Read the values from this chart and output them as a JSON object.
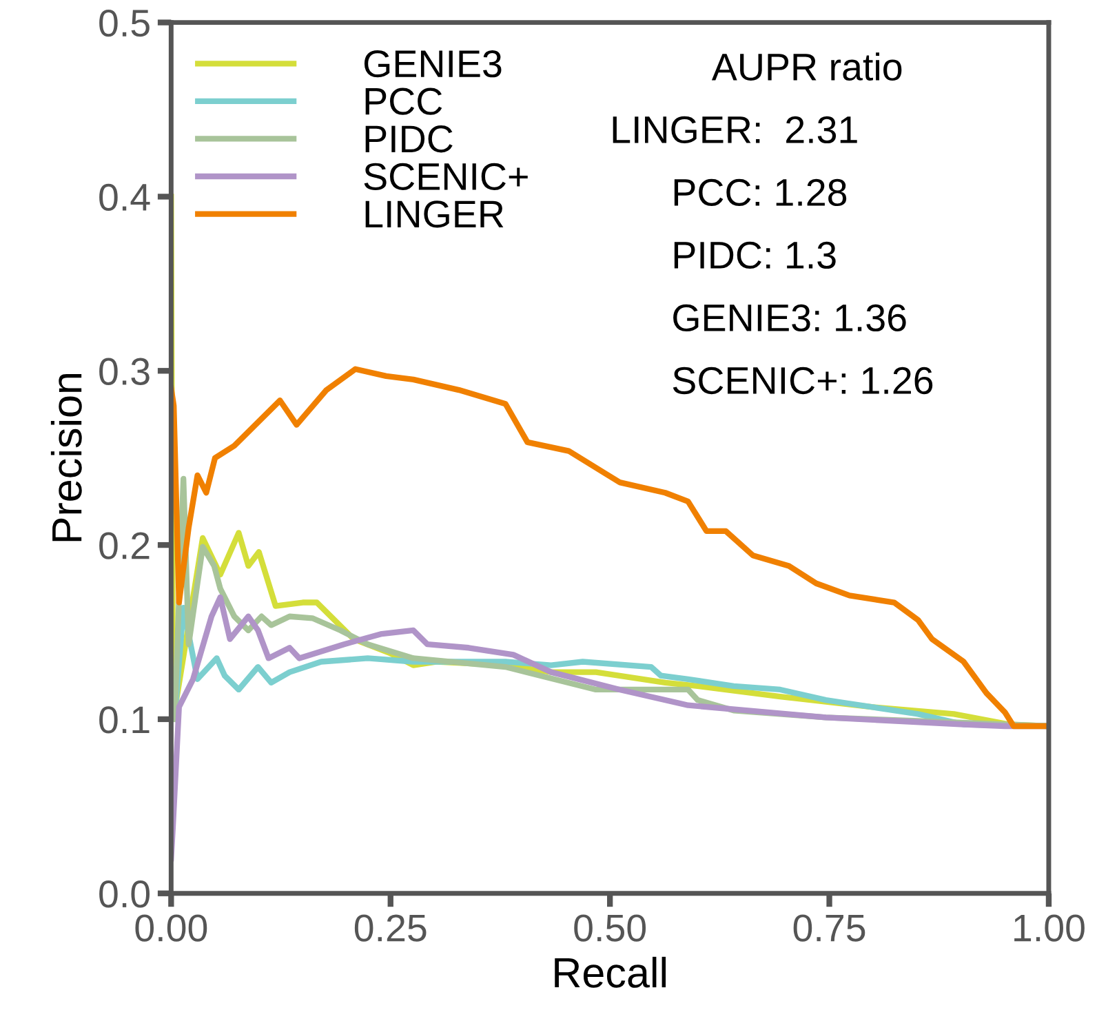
{
  "chart_data": {
    "type": "line",
    "xlabel": "Recall",
    "ylabel": "Precision",
    "xlim": [
      0,
      1
    ],
    "ylim": [
      0,
      0.5
    ],
    "xticks": [
      {
        "value": 0,
        "label": "0.00"
      },
      0.25,
      {
        "value": 0.5,
        "label": "0.50"
      },
      0.75,
      {
        "value": 1,
        "label": "1.00"
      }
    ],
    "yticks": [
      {
        "value": 0,
        "label": "0.0"
      },
      0.1,
      0.2,
      0.3,
      0.4,
      0.5
    ],
    "grid": false,
    "legend": "top left",
    "line_style": "solid",
    "marker": "none",
    "annotations": [
      "AUPR ratio",
      "LINGER:  2.31",
      "PCC: 1.28",
      "PIDC: 1.3",
      "GENIE3: 1.36",
      "SCENIC+: 1.26"
    ],
    "series": [
      {
        "name": "GENIE3",
        "color": "#d4de3a",
        "x": [
          0,
          0.002,
          0.006,
          0.036,
          0.056,
          0.077,
          0.088,
          0.1,
          0.119,
          0.15,
          0.166,
          0.182,
          0.208,
          0.249,
          0.276,
          0.303,
          0.381,
          0.433,
          0.484,
          0.563,
          0.6,
          0.694,
          0.798,
          0.892,
          0.955,
          1.0
        ],
        "values": [
          0.4,
          0.11,
          0.111,
          0.204,
          0.183,
          0.207,
          0.188,
          0.196,
          0.165,
          0.167,
          0.167,
          0.159,
          0.146,
          0.138,
          0.131,
          0.133,
          0.131,
          0.127,
          0.127,
          0.121,
          0.119,
          0.113,
          0.107,
          0.103,
          0.097,
          0.096
        ]
      },
      {
        "name": "PCC",
        "color": "#7ccfcf",
        "x": [
          0.004,
          0.014,
          0.03,
          0.052,
          0.061,
          0.077,
          0.099,
          0.114,
          0.135,
          0.171,
          0.224,
          0.276,
          0.381,
          0.433,
          0.469,
          0.547,
          0.558,
          0.589,
          0.641,
          0.694,
          0.746,
          0.798,
          0.851,
          0.903,
          1.0
        ],
        "values": [
          0.1,
          0.164,
          0.123,
          0.135,
          0.125,
          0.117,
          0.13,
          0.121,
          0.127,
          0.133,
          0.135,
          0.133,
          0.133,
          0.131,
          0.133,
          0.13,
          0.125,
          0.123,
          0.119,
          0.117,
          0.111,
          0.107,
          0.103,
          0.097,
          0.096
        ]
      },
      {
        "name": "PIDC",
        "color": "#a8c49a",
        "x": [
          0.004,
          0.014,
          0.02,
          0.036,
          0.049,
          0.056,
          0.072,
          0.088,
          0.103,
          0.114,
          0.135,
          0.161,
          0.193,
          0.224,
          0.276,
          0.381,
          0.484,
          0.589,
          0.6,
          0.641,
          0.746,
          0.851,
          1.0
        ],
        "values": [
          0.1,
          0.238,
          0.143,
          0.199,
          0.188,
          0.175,
          0.159,
          0.151,
          0.159,
          0.154,
          0.159,
          0.158,
          0.151,
          0.143,
          0.135,
          0.13,
          0.117,
          0.117,
          0.111,
          0.105,
          0.101,
          0.099,
          0.096
        ]
      },
      {
        "name": "SCENIC+",
        "color": "#b094c8",
        "x": [
          0.0,
          0.002,
          0.009,
          0.025,
          0.046,
          0.056,
          0.067,
          0.088,
          0.099,
          0.111,
          0.135,
          0.146,
          0.197,
          0.24,
          0.276,
          0.292,
          0.339,
          0.39,
          0.433,
          0.511,
          0.589,
          0.746,
          0.903,
          0.95,
          1.0
        ],
        "values": [
          0.02,
          0.038,
          0.107,
          0.123,
          0.159,
          0.17,
          0.146,
          0.159,
          0.151,
          0.135,
          0.141,
          0.135,
          0.143,
          0.149,
          0.151,
          0.143,
          0.141,
          0.137,
          0.127,
          0.117,
          0.108,
          0.101,
          0.097,
          0.096,
          0.096
        ]
      },
      {
        "name": "LINGER",
        "color": "#f08000",
        "x": [
          0.0,
          0.003,
          0.009,
          0.02,
          0.03,
          0.04,
          0.05,
          0.072,
          0.124,
          0.143,
          0.177,
          0.21,
          0.245,
          0.276,
          0.328,
          0.381,
          0.406,
          0.453,
          0.495,
          0.511,
          0.563,
          0.589,
          0.61,
          0.632,
          0.663,
          0.704,
          0.735,
          0.773,
          0.824,
          0.851,
          0.867,
          0.903,
          0.929,
          0.95,
          0.96,
          1.0
        ],
        "values": [
          0.29,
          0.28,
          0.167,
          0.21,
          0.24,
          0.23,
          0.25,
          0.257,
          0.283,
          0.269,
          0.289,
          0.301,
          0.297,
          0.295,
          0.289,
          0.281,
          0.259,
          0.254,
          0.241,
          0.236,
          0.23,
          0.225,
          0.208,
          0.208,
          0.194,
          0.188,
          0.178,
          0.171,
          0.167,
          0.157,
          0.146,
          0.133,
          0.115,
          0.104,
          0.096,
          0.096
        ]
      }
    ]
  }
}
